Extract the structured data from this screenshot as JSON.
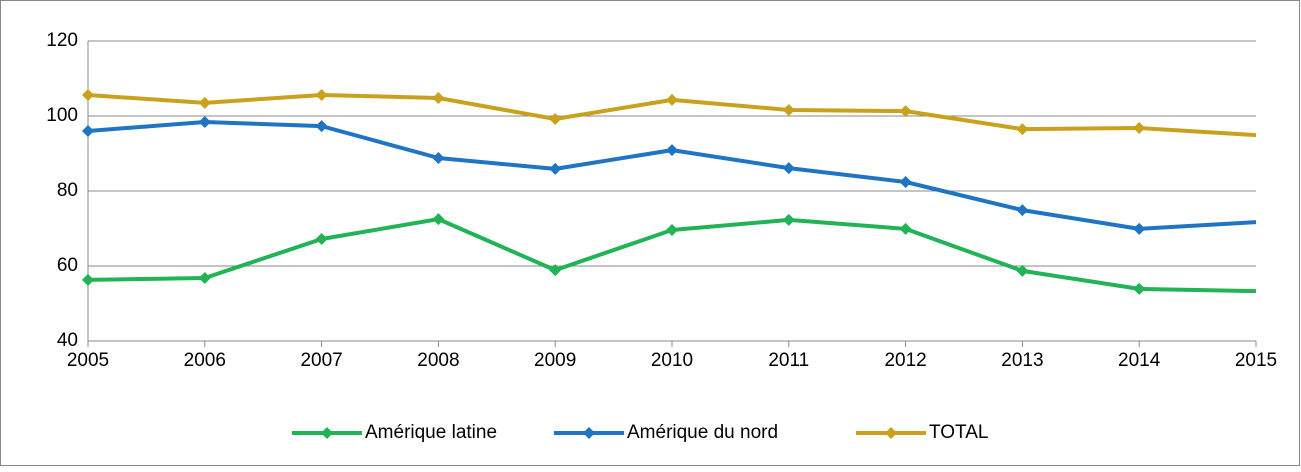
{
  "chart_data": {
    "type": "line",
    "x": [
      2005,
      2006,
      2007,
      2008,
      2009,
      2010,
      2011,
      2012,
      2013,
      2014,
      2015
    ],
    "series": [
      {
        "name": "Amérique latine",
        "color": "#22b356",
        "values": [
          56.3,
          56.8,
          67.2,
          72.5,
          58.9,
          69.6,
          72.3,
          69.9,
          58.7,
          53.9,
          53.3
        ]
      },
      {
        "name": "Amérique du nord",
        "color": "#1f74c4",
        "values": [
          96.0,
          98.4,
          97.3,
          88.8,
          85.9,
          90.9,
          86.1,
          82.4,
          74.9,
          69.9,
          71.7
        ]
      },
      {
        "name": "TOTAL",
        "color": "#c9a11c",
        "values": [
          105.6,
          103.5,
          105.6,
          104.8,
          99.2,
          104.3,
          101.6,
          101.3,
          96.5,
          96.8,
          94.9
        ]
      }
    ],
    "xlim": [
      2005,
      2015
    ],
    "xticks": [
      2005,
      2006,
      2007,
      2008,
      2009,
      2010,
      2011,
      2012,
      2013,
      2014,
      2015
    ],
    "ylim": [
      40,
      120
    ],
    "yticks": [
      40,
      60,
      80,
      100,
      120
    ],
    "grid": true,
    "legend": "bottom"
  }
}
